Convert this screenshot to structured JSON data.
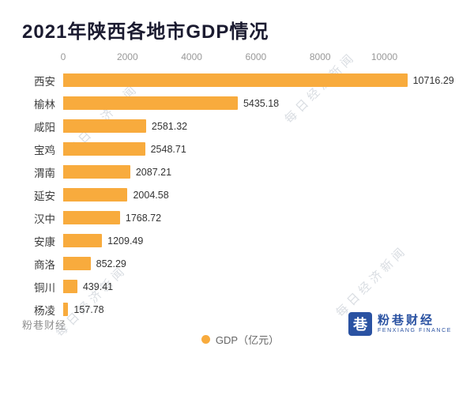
{
  "header": {
    "title": "2021年陕西各地市GDP情况"
  },
  "chart_data": {
    "type": "bar",
    "orientation": "horizontal",
    "title": "2021年陕西各地市GDP情况",
    "categories": [
      "西安",
      "榆林",
      "咸阳",
      "宝鸡",
      "渭南",
      "延安",
      "汉中",
      "安康",
      "商洛",
      "铜川",
      "杨凌"
    ],
    "values": [
      10716.29,
      5435.18,
      2581.32,
      2548.71,
      2087.21,
      2004.58,
      1768.72,
      1209.49,
      852.29,
      439.41,
      157.78
    ],
    "value_labels": [
      "10716.29",
      "5435.18",
      "2581.32",
      "2548.71",
      "2087.21",
      "2004.58",
      "1768.72",
      "1209.49",
      "852.29",
      "439.41",
      "157.78"
    ],
    "x_ticks": [
      0,
      2000,
      4000,
      6000,
      8000,
      10000
    ],
    "xlim": [
      0,
      12300
    ],
    "grid": false,
    "legend_position": "bottom",
    "legend": "GDP（亿元）",
    "bar_color": "#F8AB3D"
  },
  "legend": {
    "label": "GDP（亿元）",
    "dot_color": "#F8AB3D"
  },
  "watermark": {
    "text": "每日经济新闻"
  },
  "footer": {
    "left": "粉巷财经",
    "brand_glyph": "巷",
    "brand_name": "粉巷财经",
    "brand_sub": "FENXIANG FINANCE",
    "brand_color": "#2A52A2"
  }
}
